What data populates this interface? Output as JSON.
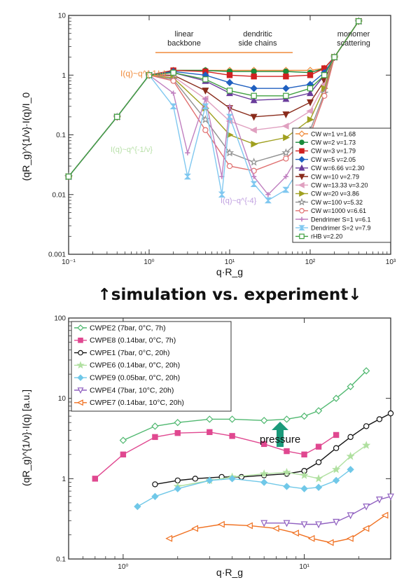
{
  "divider_text": "↑simulation vs. experiment↓",
  "chart_data": [
    {
      "type": "line",
      "xscale": "log",
      "yscale": "log",
      "xlim": [
        0.1,
        1000
      ],
      "ylim": [
        0.001,
        10
      ],
      "xticks": [
        "10⁻¹",
        "10⁰",
        "10¹",
        "10²",
        "10³"
      ],
      "yticks": [
        "0.001",
        "0.01",
        "0.1",
        "1",
        "10"
      ],
      "xlabel": "q·R_g",
      "ylabel": "(qR_g)^{1/ν}·I(q)/I_0",
      "annotations": {
        "power_law_top": "I(q)~q^{-1/ν}",
        "linear_backbone": "linear\nbackbone",
        "dendritic": "dendritic\nside chains",
        "monomer": "monomer\nscattering",
        "power_law_mid": "I(q)~q^{-1/ν}",
        "power_law_low": "I(q)~q^{-4}"
      },
      "legend_position": "right",
      "series": [
        {
          "name": "CW w=1 ν=1.68",
          "color": "#f08c3c",
          "marker": "diamond-open",
          "x": [
            0.1,
            0.4,
            1,
            2,
            5,
            10,
            20,
            50,
            100,
            150,
            200,
            400
          ],
          "y": [
            0.02,
            0.2,
            1,
            1.2,
            1.2,
            1.2,
            1.2,
            1.2,
            1.2,
            1.3,
            2,
            8
          ]
        },
        {
          "name": "CW w=2 ν=1.73",
          "color": "#1a8a3a",
          "marker": "circle",
          "x": [
            0.1,
            0.4,
            1,
            2,
            5,
            10,
            20,
            50,
            100,
            150,
            200,
            400
          ],
          "y": [
            0.02,
            0.2,
            1,
            1.2,
            1.2,
            1.15,
            1.15,
            1.15,
            1.1,
            1.3,
            2,
            8
          ]
        },
        {
          "name": "CW w=3 ν=1.79",
          "color": "#d02020",
          "marker": "square",
          "x": [
            0.1,
            0.4,
            1,
            2,
            5,
            10,
            20,
            50,
            100,
            150,
            200,
            400
          ],
          "y": [
            0.02,
            0.2,
            1,
            1.2,
            1.15,
            1.0,
            0.95,
            0.95,
            1.0,
            1.3,
            2,
            8
          ]
        },
        {
          "name": "CW w=5 ν=2.05",
          "color": "#2060c0",
          "marker": "diamond",
          "x": [
            0.1,
            0.4,
            1,
            2,
            5,
            10,
            20,
            50,
            100,
            150,
            200,
            400
          ],
          "y": [
            0.02,
            0.2,
            1,
            1.15,
            1.0,
            0.75,
            0.6,
            0.6,
            0.7,
            1.1,
            2,
            8
          ]
        },
        {
          "name": "CW w=6.66 ν=2.30",
          "color": "#6a3c9c",
          "marker": "triangle-up",
          "x": [
            0.1,
            0.4,
            1,
            2,
            5,
            10,
            20,
            50,
            100,
            150,
            200,
            400
          ],
          "y": [
            0.02,
            0.2,
            1,
            1.1,
            0.8,
            0.5,
            0.38,
            0.4,
            0.5,
            1.0,
            2,
            8
          ]
        },
        {
          "name": "CW w=10 ν=2.79",
          "color": "#8a2c1c",
          "marker": "triangle-down",
          "x": [
            0.1,
            0.4,
            1,
            2,
            5,
            10,
            20,
            50,
            100,
            150,
            200,
            400
          ],
          "y": [
            0.02,
            0.2,
            1,
            1.0,
            0.55,
            0.28,
            0.2,
            0.22,
            0.35,
            0.8,
            2,
            8
          ]
        },
        {
          "name": "CW w=13.33 ν=3.20",
          "color": "#e0a0c0",
          "marker": "triangle-left",
          "x": [
            0.1,
            0.4,
            1,
            2,
            5,
            10,
            20,
            50,
            100,
            150,
            200,
            400
          ],
          "y": [
            0.02,
            0.2,
            1,
            0.95,
            0.4,
            0.17,
            0.12,
            0.14,
            0.25,
            0.7,
            2,
            8
          ]
        },
        {
          "name": "CW w=20 ν=3.86",
          "color": "#a0a020",
          "marker": "triangle-right",
          "x": [
            0.1,
            0.4,
            1,
            2,
            5,
            10,
            20,
            50,
            100,
            150,
            200,
            400
          ],
          "y": [
            0.02,
            0.2,
            1,
            0.9,
            0.28,
            0.1,
            0.07,
            0.09,
            0.18,
            0.6,
            2,
            8
          ]
        },
        {
          "name": "CW w=100 ν=5.32",
          "color": "#909090",
          "marker": "star-open",
          "x": [
            0.1,
            0.4,
            1,
            2,
            5,
            10,
            20,
            50,
            100,
            150,
            200,
            400
          ],
          "y": [
            0.02,
            0.2,
            1,
            0.85,
            0.18,
            0.05,
            0.035,
            0.05,
            0.12,
            0.5,
            2,
            8
          ]
        },
        {
          "name": "CW w=1000 ν=6.61",
          "color": "#e07070",
          "marker": "circle-open",
          "x": [
            0.1,
            0.4,
            1,
            2,
            5,
            10,
            20,
            50,
            100,
            150,
            200,
            400
          ],
          "y": [
            0.02,
            0.2,
            1,
            0.8,
            0.12,
            0.03,
            0.025,
            0.04,
            0.1,
            0.45,
            2,
            8
          ]
        },
        {
          "name": "Dendrimer S=1 ν=6.1",
          "color": "#c080c0",
          "marker": "plus",
          "x": [
            0.1,
            0.4,
            1,
            2,
            3,
            5,
            8,
            10,
            20,
            30,
            50,
            100
          ],
          "y": [
            0.02,
            0.2,
            1,
            0.5,
            0.05,
            0.4,
            0.02,
            0.3,
            0.02,
            0.01,
            0.02,
            0.1
          ]
        },
        {
          "name": "Dendrimer S=2 ν=7.9",
          "color": "#80c8f0",
          "marker": "hourglass",
          "x": [
            0.1,
            0.4,
            1,
            2,
            3,
            5,
            8,
            10,
            20,
            30,
            50,
            100
          ],
          "y": [
            0.02,
            0.2,
            1,
            0.3,
            0.02,
            0.3,
            0.01,
            0.2,
            0.015,
            0.008,
            0.012,
            0.05
          ]
        },
        {
          "name": "rHB ν=2.20",
          "color": "#40a040",
          "marker": "square-open",
          "x": [
            0.1,
            0.4,
            1,
            2,
            5,
            10,
            20,
            50,
            100,
            150,
            200,
            400
          ],
          "y": [
            0.02,
            0.2,
            1,
            1.1,
            0.85,
            0.55,
            0.45,
            0.45,
            0.6,
            1.0,
            2,
            8
          ]
        }
      ]
    },
    {
      "type": "line",
      "xscale": "log",
      "yscale": "log",
      "xlim": [
        0.5,
        30
      ],
      "ylim": [
        0.1,
        100
      ],
      "xticks": [
        "10⁰",
        "10¹"
      ],
      "yticks": [
        "0.1",
        "1",
        "10",
        "100"
      ],
      "xlabel": "q·R_g",
      "ylabel": "(qR_g)^{1/ν}·I(q) [a.u.]",
      "annotations": {
        "arrow_label": "pressure"
      },
      "legend_position": "top-left",
      "series": [
        {
          "name": "CWPE2 (7bar, 0°C, 7h)",
          "color": "#50b870",
          "marker": "diamond-open",
          "x": [
            1.0,
            1.5,
            2.0,
            3.0,
            4.0,
            6.0,
            8.0,
            10,
            12,
            15,
            18,
            22
          ],
          "y": [
            3.0,
            4.5,
            5.0,
            5.5,
            5.5,
            5.3,
            5.5,
            6.0,
            7.0,
            10,
            14,
            22
          ]
        },
        {
          "name": "CWPE8 (0.14bar, 0°C, 7h)",
          "color": "#e04890",
          "marker": "square",
          "x": [
            0.7,
            1.0,
            1.5,
            2.0,
            3.0,
            4.0,
            6.0,
            8.0,
            10,
            12,
            15
          ],
          "y": [
            1.0,
            2.0,
            3.3,
            3.7,
            3.8,
            3.4,
            2.7,
            2.2,
            2.0,
            2.5,
            3.5
          ]
        },
        {
          "name": "CWPE1 (7bar, 0°C, 20h)",
          "color": "#111111",
          "marker": "circle-open",
          "x": [
            1.5,
            2.0,
            2.5,
            3.5,
            4.5,
            6.0,
            8.0,
            10,
            12,
            15,
            18,
            22,
            26,
            30
          ],
          "y": [
            0.85,
            0.95,
            1.0,
            1.05,
            1.05,
            1.1,
            1.15,
            1.25,
            1.6,
            2.4,
            3.3,
            4.5,
            5.5,
            6.5
          ]
        },
        {
          "name": "CWPE6 (0.14bar, 0°C, 20h)",
          "color": "#b0e0a0",
          "marker": "star",
          "x": [
            2.0,
            3.0,
            4.0,
            6.0,
            8.0,
            10,
            12,
            15,
            18,
            22
          ],
          "y": [
            0.8,
            0.95,
            1.05,
            1.15,
            1.2,
            1.1,
            1.0,
            1.3,
            1.9,
            2.6
          ]
        },
        {
          "name": "CWPE9 (0.05bar, 0°C, 20h)",
          "color": "#70c8e8",
          "marker": "diamond",
          "x": [
            1.2,
            1.5,
            2.0,
            3.0,
            4.0,
            6.0,
            8.0,
            10,
            12,
            15,
            18
          ],
          "y": [
            0.45,
            0.6,
            0.75,
            0.95,
            1.0,
            0.9,
            0.8,
            0.75,
            0.78,
            0.95,
            1.3
          ]
        },
        {
          "name": "CWPE4 (7bar, 10°C, 20h)",
          "color": "#9060c0",
          "marker": "triangle-down-open",
          "x": [
            6.0,
            8.0,
            10,
            12,
            15,
            18,
            22,
            26,
            30
          ],
          "y": [
            0.28,
            0.28,
            0.27,
            0.27,
            0.29,
            0.35,
            0.45,
            0.55,
            0.6
          ]
        },
        {
          "name": "CWPE7 (0.14bar, 10°C, 20h)",
          "color": "#f07020",
          "marker": "triangle-left-open",
          "x": [
            1.8,
            2.5,
            3.5,
            5.0,
            7.0,
            9.0,
            11,
            14,
            18,
            22,
            28
          ],
          "y": [
            0.18,
            0.24,
            0.27,
            0.26,
            0.24,
            0.21,
            0.18,
            0.16,
            0.18,
            0.24,
            0.35
          ]
        }
      ]
    }
  ]
}
